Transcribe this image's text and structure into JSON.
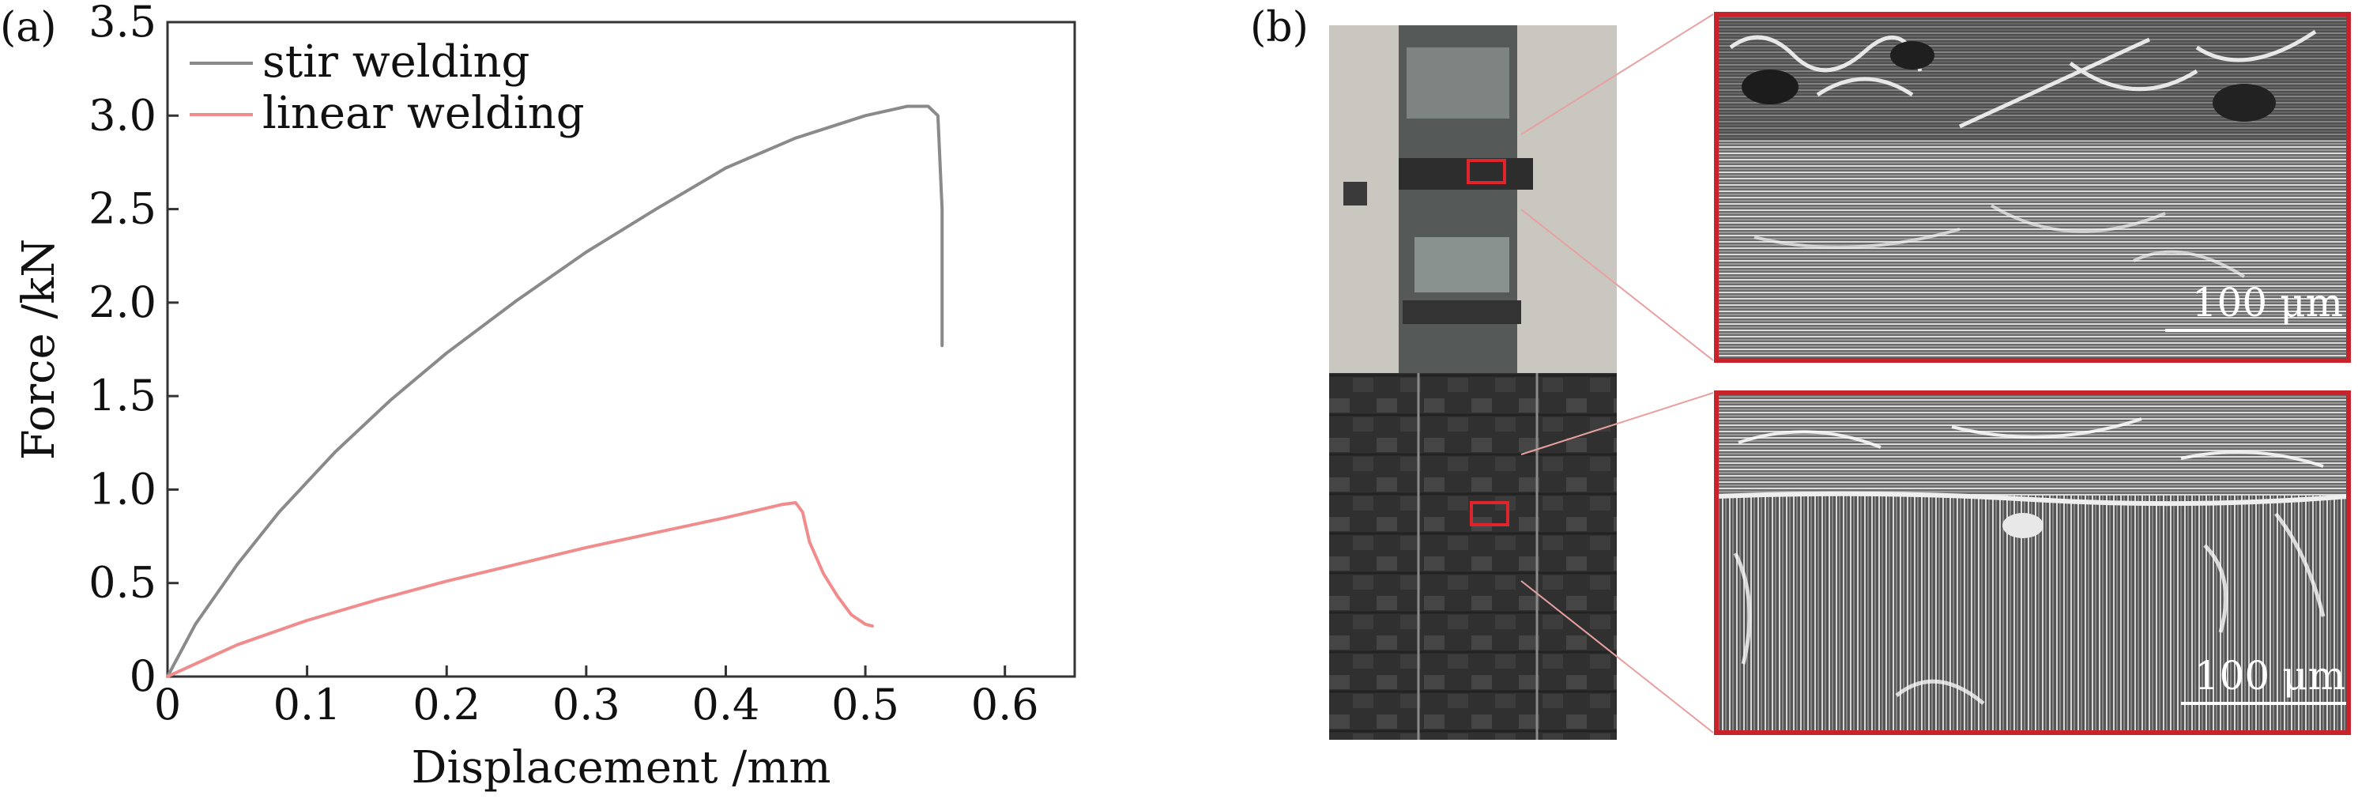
{
  "panels": {
    "a": "(a)",
    "b": "(b)"
  },
  "chart_data": {
    "type": "line",
    "title": "",
    "xlabel": "Displacement /mm",
    "ylabel": "Force /kN",
    "xlim": [
      0,
      0.65
    ],
    "ylim": [
      0,
      3.5
    ],
    "xticks": [
      0,
      0.1,
      0.2,
      0.3,
      0.4,
      0.5,
      0.6
    ],
    "xtick_labels": [
      "0",
      "0.1",
      "0.2",
      "0.3",
      "0.4",
      "0.5",
      "0.6"
    ],
    "yticks": [
      0,
      0.5,
      1.0,
      1.5,
      2.0,
      2.5,
      3.0,
      3.5
    ],
    "ytick_labels": [
      "0",
      "0.5",
      "1.0",
      "1.5",
      "2.0",
      "2.5",
      "3.0",
      "3.5"
    ],
    "grid": false,
    "legend_position": "top-left",
    "series": [
      {
        "name": "stir welding",
        "color": "#8a8a8a",
        "x": [
          0,
          0.02,
          0.05,
          0.08,
          0.12,
          0.16,
          0.2,
          0.25,
          0.3,
          0.35,
          0.4,
          0.45,
          0.5,
          0.53,
          0.545,
          0.552,
          0.555,
          0.555
        ],
        "y": [
          0,
          0.28,
          0.6,
          0.88,
          1.2,
          1.48,
          1.73,
          2.01,
          2.27,
          2.5,
          2.72,
          2.88,
          3.0,
          3.05,
          3.05,
          3.0,
          2.5,
          1.77
        ]
      },
      {
        "name": "linear welding",
        "color": "#f08c8c",
        "x": [
          0,
          0.05,
          0.1,
          0.15,
          0.2,
          0.25,
          0.3,
          0.35,
          0.4,
          0.44,
          0.45,
          0.455,
          0.46,
          0.47,
          0.48,
          0.49,
          0.5,
          0.505
        ],
        "y": [
          0,
          0.17,
          0.3,
          0.41,
          0.51,
          0.6,
          0.69,
          0.77,
          0.85,
          0.92,
          0.93,
          0.88,
          0.72,
          0.55,
          0.43,
          0.33,
          0.28,
          0.27
        ]
      }
    ]
  },
  "micrograph": {
    "scale_bar_top": "100 μm",
    "scale_bar_bottom": "100 μm",
    "frame_color": "#c8222a",
    "connector_color": "#e8a0a0"
  }
}
